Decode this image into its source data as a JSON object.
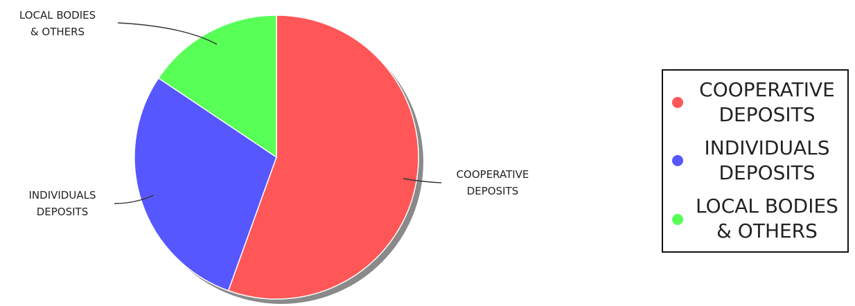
{
  "chart_data": {
    "type": "pie",
    "title": "",
    "categories": [
      "COOPERATIVE DEPOSITS",
      "INDIVIDUALS DEPOSITS",
      "LOCAL BODIES & OTHERS"
    ],
    "values": [
      55.5,
      28.9,
      15.6
    ],
    "colors": [
      "#ff5757",
      "#5757ff",
      "#57ff57"
    ],
    "slice_labels": [
      [
        "COOPERATIVE",
        "DEPOSITS"
      ],
      [
        "INDIVIDUALS",
        "DEPOSITS"
      ],
      [
        "LOCAL BODIES",
        "& OTHERS"
      ]
    ],
    "legend": {
      "position": "right",
      "items": [
        [
          "COOPERATIVE",
          "DEPOSITS"
        ],
        [
          "INDIVIDUALS",
          "DEPOSITS"
        ],
        [
          "LOCAL BODIES",
          "& OTHERS"
        ]
      ]
    }
  }
}
